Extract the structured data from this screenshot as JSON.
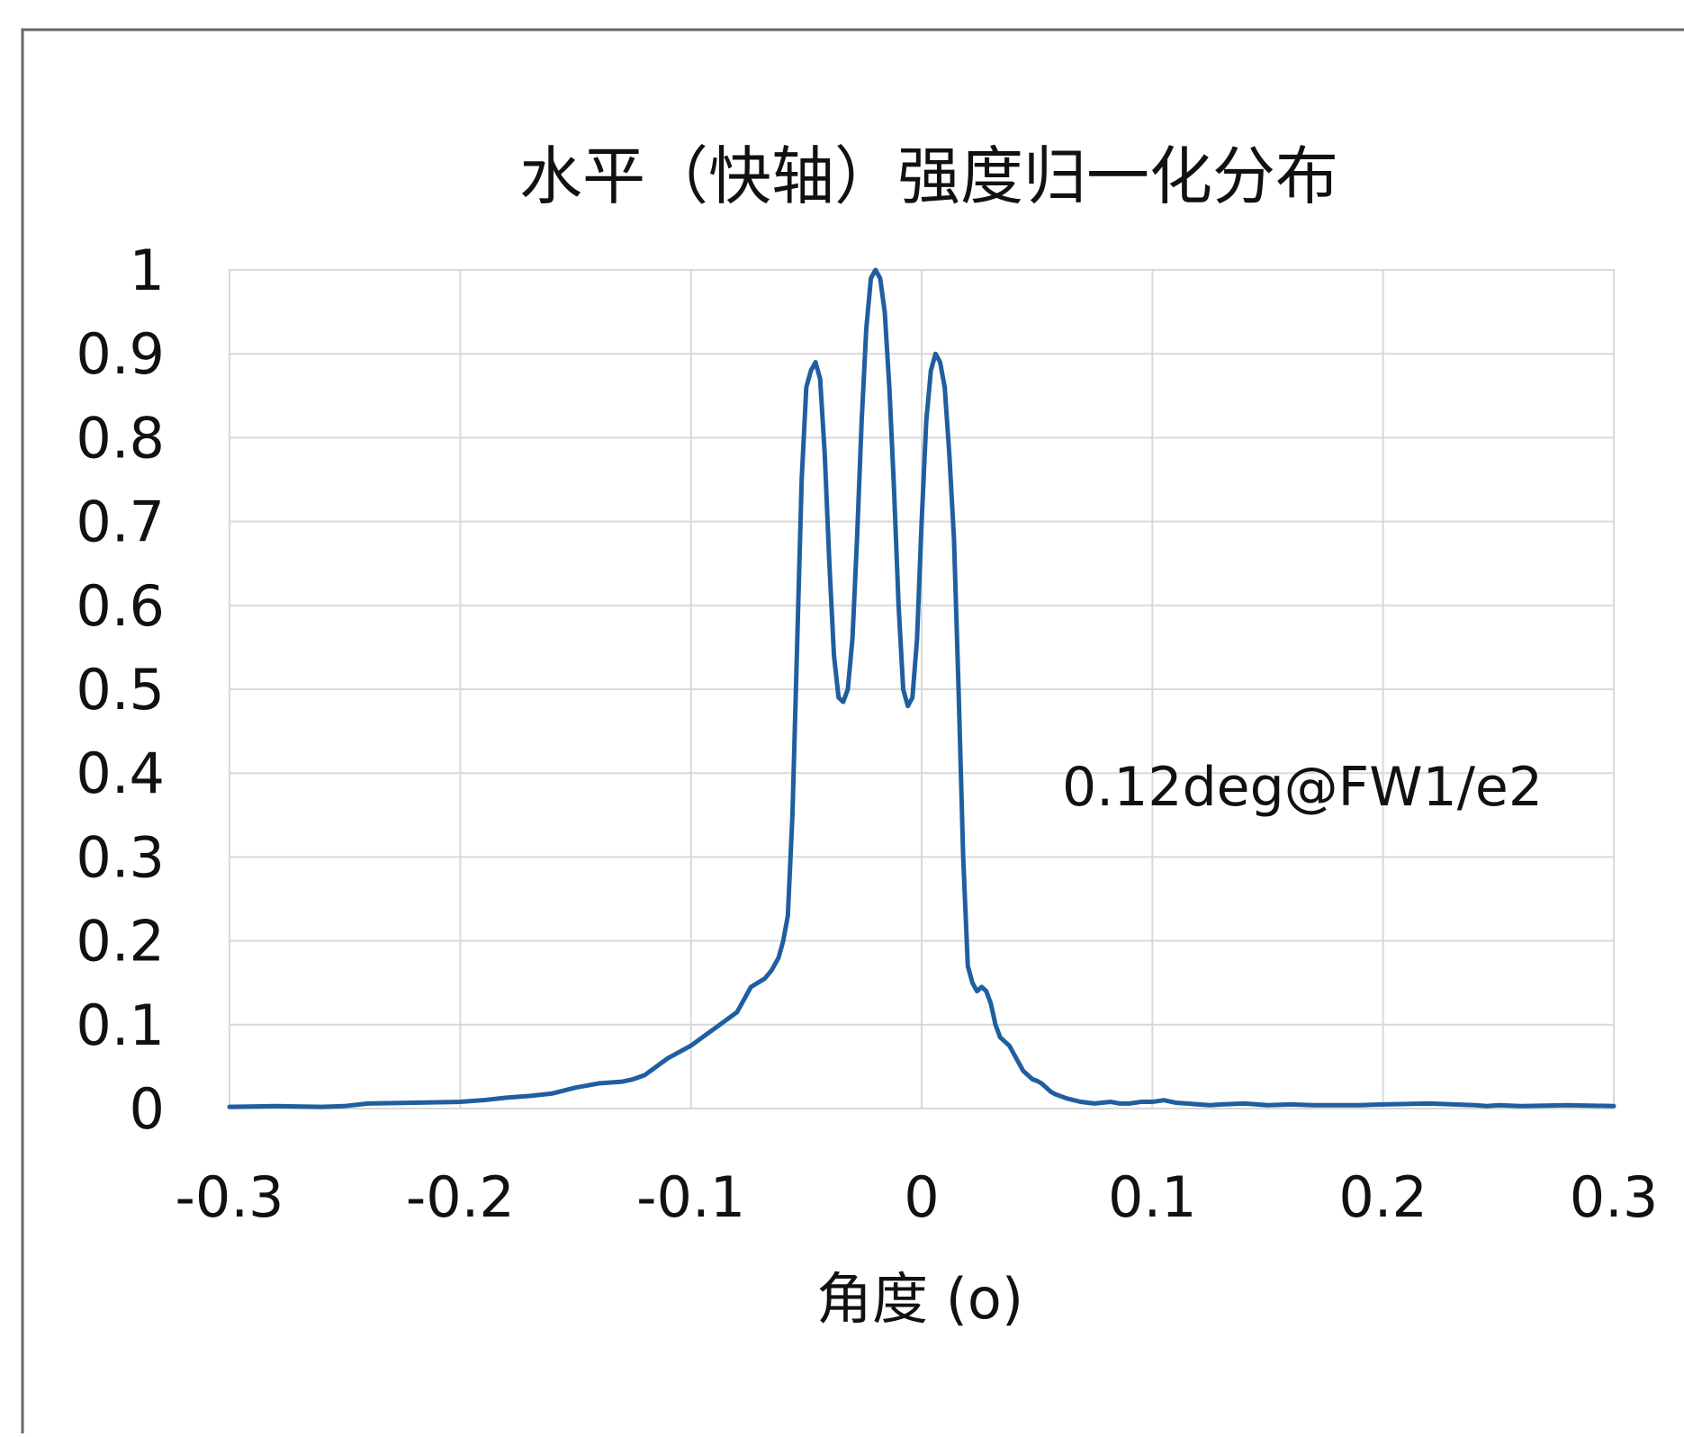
{
  "chart_data": {
    "type": "line",
    "title": "水平（快轴）强度归一化分布",
    "xlabel": "角度 (o)",
    "ylabel": "",
    "xlim": [
      -0.3,
      0.3
    ],
    "ylim": [
      0,
      1
    ],
    "x_ticks": [
      -0.3,
      -0.2,
      -0.1,
      0,
      0.1,
      0.2,
      0.3
    ],
    "x_tick_labels": [
      "-0.3",
      "-0.2",
      "-0.1",
      "0",
      "0.1",
      "0.2",
      "0.3"
    ],
    "y_ticks": [
      0,
      0.1,
      0.2,
      0.3,
      0.4,
      0.5,
      0.6,
      0.7,
      0.8,
      0.9,
      1
    ],
    "y_tick_labels": [
      "0",
      "0.1",
      "0.2",
      "0.3",
      "0.4",
      "0.5",
      "0.6",
      "0.7",
      "0.8",
      "0.9",
      "1"
    ],
    "grid": true,
    "legend": "none",
    "annotations": [
      {
        "text": "0.12deg@FW1/e2",
        "x": 0.063,
        "y": 0.385
      }
    ],
    "series": [
      {
        "color": "#1f5f9f",
        "x": [
          -0.3,
          -0.28,
          -0.26,
          -0.25,
          -0.24,
          -0.22,
          -0.2,
          -0.19,
          -0.18,
          -0.17,
          -0.16,
          -0.15,
          -0.14,
          -0.13,
          -0.125,
          -0.12,
          -0.115,
          -0.11,
          -0.1,
          -0.095,
          -0.09,
          -0.085,
          -0.08,
          -0.077,
          -0.074,
          -0.071,
          -0.068,
          -0.065,
          -0.062,
          -0.06,
          -0.058,
          -0.056,
          -0.054,
          -0.052,
          -0.05,
          -0.048,
          -0.046,
          -0.044,
          -0.042,
          -0.04,
          -0.038,
          -0.036,
          -0.034,
          -0.032,
          -0.03,
          -0.028,
          -0.026,
          -0.024,
          -0.022,
          -0.02,
          -0.018,
          -0.016,
          -0.014,
          -0.012,
          -0.01,
          -0.008,
          -0.006,
          -0.004,
          -0.002,
          0,
          0.002,
          0.004,
          0.006,
          0.008,
          0.01,
          0.012,
          0.014,
          0.016,
          0.018,
          0.02,
          0.022,
          0.024,
          0.026,
          0.028,
          0.03,
          0.032,
          0.034,
          0.036,
          0.038,
          0.04,
          0.042,
          0.044,
          0.046,
          0.048,
          0.05,
          0.052,
          0.054,
          0.056,
          0.058,
          0.06,
          0.063,
          0.066,
          0.069,
          0.072,
          0.075,
          0.078,
          0.082,
          0.086,
          0.09,
          0.095,
          0.1,
          0.105,
          0.11,
          0.115,
          0.12,
          0.125,
          0.13,
          0.14,
          0.15,
          0.16,
          0.17,
          0.18,
          0.19,
          0.2,
          0.22,
          0.24,
          0.245,
          0.25,
          0.26,
          0.28,
          0.3
        ],
        "y": [
          0.002,
          0.003,
          0.002,
          0.003,
          0.006,
          0.007,
          0.008,
          0.01,
          0.013,
          0.015,
          0.018,
          0.025,
          0.03,
          0.032,
          0.035,
          0.04,
          0.05,
          0.06,
          0.075,
          0.085,
          0.095,
          0.105,
          0.115,
          0.13,
          0.145,
          0.15,
          0.155,
          0.165,
          0.18,
          0.2,
          0.23,
          0.35,
          0.55,
          0.75,
          0.86,
          0.88,
          0.89,
          0.87,
          0.78,
          0.65,
          0.54,
          0.49,
          0.485,
          0.5,
          0.56,
          0.68,
          0.82,
          0.93,
          0.99,
          1.0,
          0.99,
          0.95,
          0.86,
          0.74,
          0.6,
          0.5,
          0.48,
          0.49,
          0.56,
          0.7,
          0.82,
          0.88,
          0.9,
          0.89,
          0.86,
          0.78,
          0.68,
          0.5,
          0.3,
          0.17,
          0.15,
          0.14,
          0.145,
          0.14,
          0.125,
          0.1,
          0.085,
          0.08,
          0.075,
          0.065,
          0.055,
          0.045,
          0.04,
          0.035,
          0.033,
          0.03,
          0.025,
          0.02,
          0.017,
          0.015,
          0.012,
          0.01,
          0.008,
          0.007,
          0.006,
          0.007,
          0.008,
          0.006,
          0.006,
          0.008,
          0.008,
          0.01,
          0.007,
          0.006,
          0.005,
          0.004,
          0.005,
          0.006,
          0.004,
          0.005,
          0.004,
          0.004,
          0.004,
          0.005,
          0.006,
          0.004,
          0.003,
          0.004,
          0.003,
          0.004,
          0.003
        ]
      }
    ]
  }
}
